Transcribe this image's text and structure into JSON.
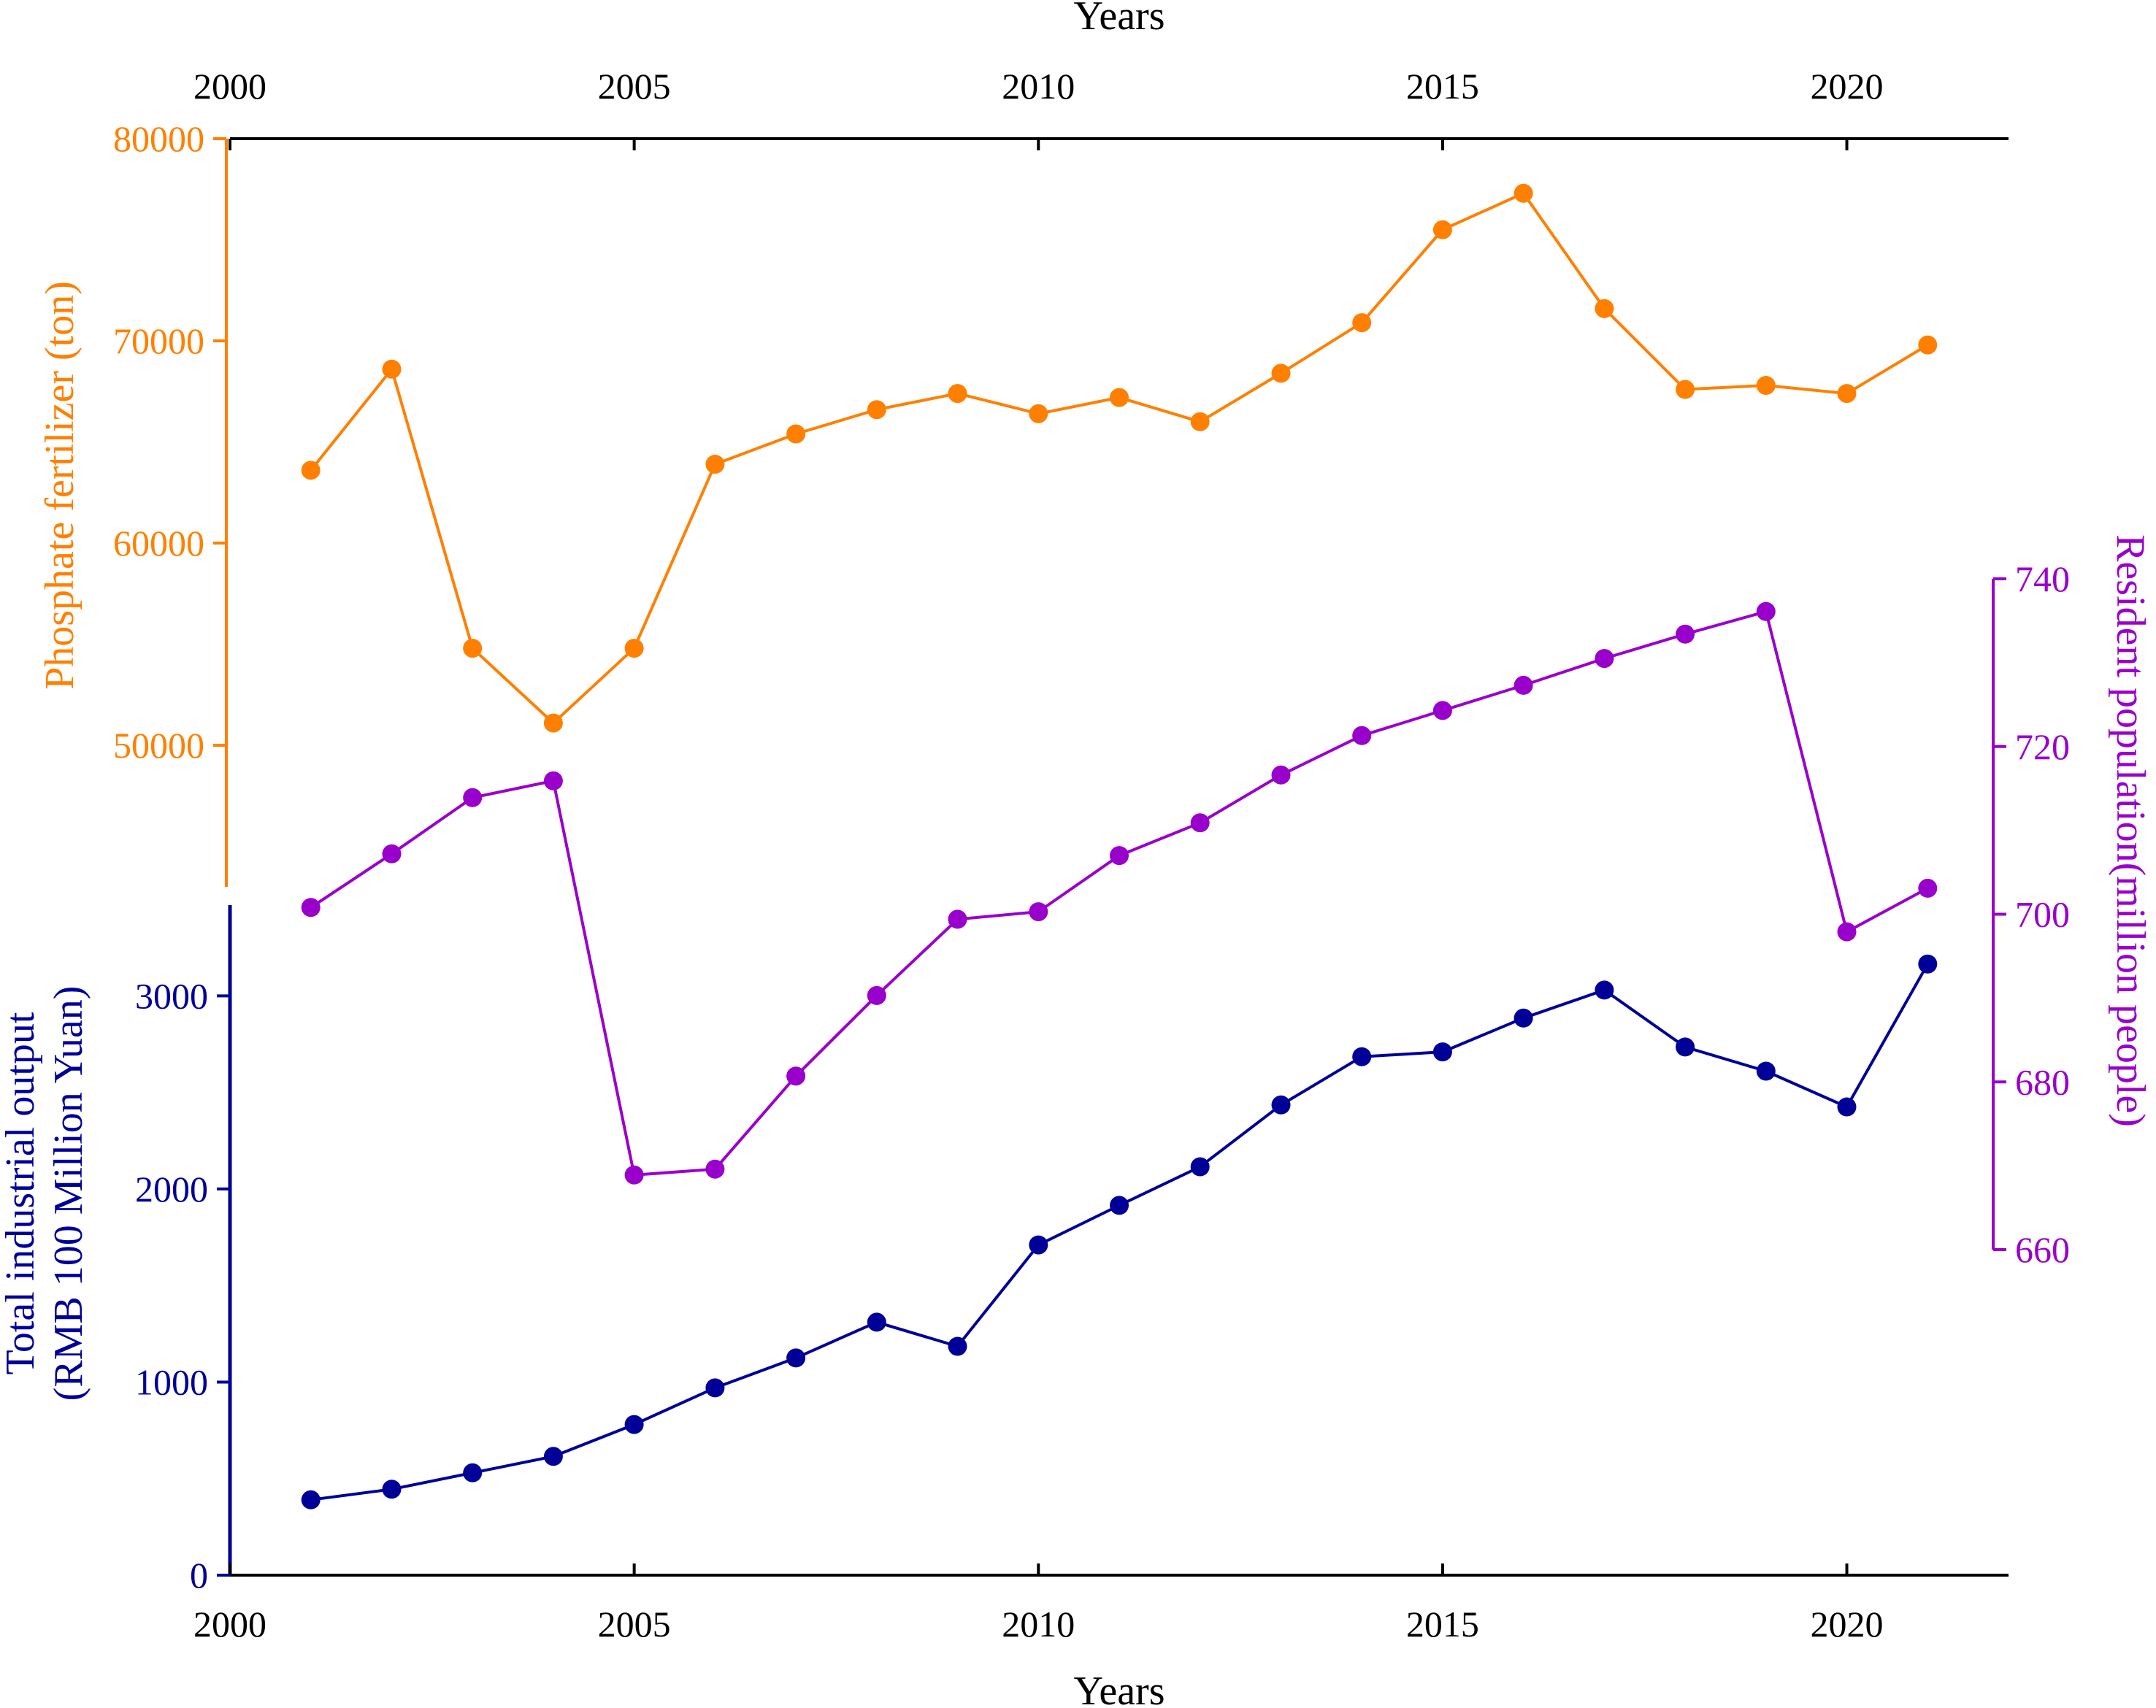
{
  "chart_data": {
    "type": "line",
    "x": [
      2001,
      2002,
      2003,
      2004,
      2005,
      2006,
      2007,
      2008,
      2009,
      2010,
      2011,
      2012,
      2013,
      2014,
      2015,
      2016,
      2017,
      2018,
      2019,
      2020,
      2021
    ],
    "xlim": [
      2000,
      2022
    ],
    "x_ticks": [
      "2000",
      "2005",
      "2010",
      "2015",
      "2020"
    ],
    "x_title_top": "Years",
    "x_title_bottom": "Years",
    "series": [
      {
        "axis": "phosphate",
        "color": "#ff8000",
        "values": [
          63600,
          68600,
          54800,
          51100,
          54800,
          63900,
          65400,
          66600,
          67400,
          66400,
          67200,
          66000,
          68400,
          70900,
          75500,
          77300,
          71600,
          67600,
          67800,
          67400,
          69800
        ]
      },
      {
        "axis": "population",
        "color": "#9900cc",
        "values": [
          700.8,
          707.2,
          713.9,
          715.9,
          668.9,
          669.6,
          680.7,
          690.3,
          699.4,
          700.3,
          707.0,
          710.9,
          716.6,
          721.3,
          724.3,
          727.3,
          730.5,
          733.4,
          736.1,
          697.9,
          703.1
        ]
      },
      {
        "axis": "industrial",
        "color": "#000099",
        "values": [
          390,
          445,
          530,
          615,
          780,
          970,
          1125,
          1310,
          1185,
          1710,
          1915,
          2115,
          2435,
          2685,
          2710,
          2885,
          3030,
          2735,
          2610,
          2425,
          3165
        ]
      }
    ],
    "axes": {
      "phosphate": {
        "title": "Phosphate fertilizer (ton)",
        "color": "#ff8000",
        "ylim": [
          43000,
          80000
        ],
        "ticks": [
          "50000",
          "60000",
          "70000",
          "80000"
        ]
      },
      "industrial": {
        "title_line1": "Total industrial output",
        "title_line2": "(RMB 100 Million Yuan)",
        "color": "#000099",
        "ylim": [
          0,
          3470
        ],
        "ticks": [
          "0",
          "1000",
          "2000",
          "3000"
        ]
      },
      "population": {
        "title": "Resident population(million people)",
        "color": "#9900cc",
        "ylim": [
          660,
          740
        ],
        "ticks": [
          "660",
          "680",
          "700",
          "720",
          "740"
        ]
      }
    },
    "grid": false,
    "legend": "none"
  }
}
